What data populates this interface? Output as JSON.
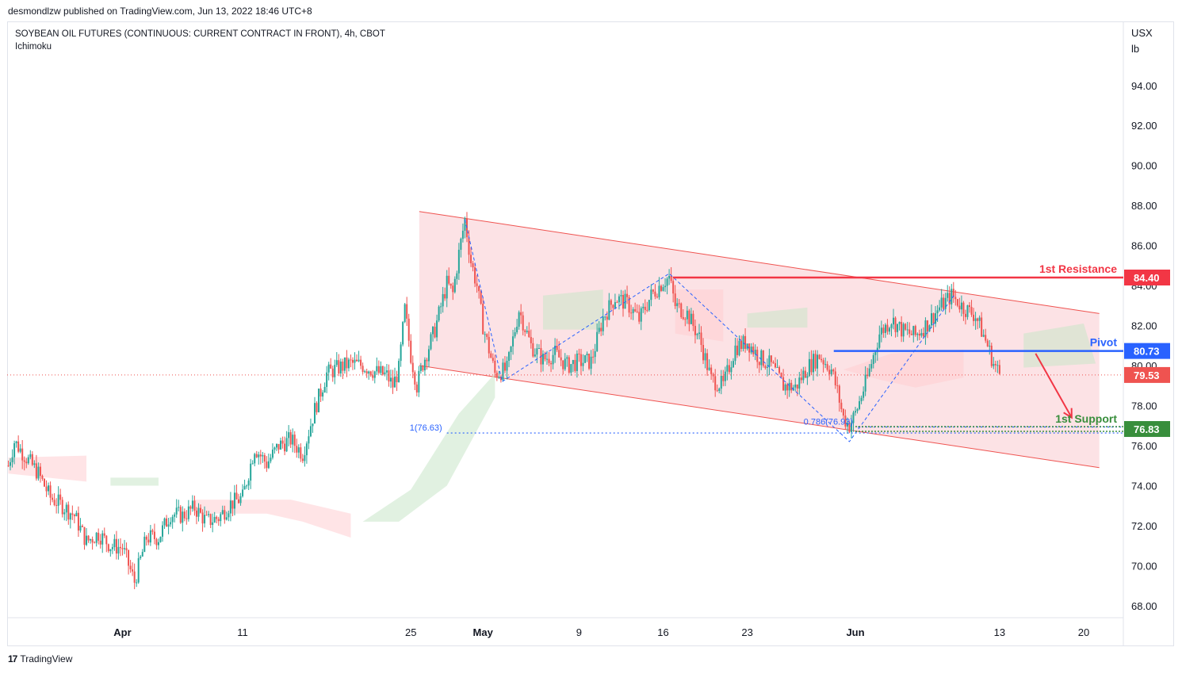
{
  "header": {
    "credit": "desmondlzw published on TradingView.com, Jun 13, 2022 18:46 UTC+8",
    "title": "SOYBEAN OIL FUTURES (CONTINUOUS: CURRENT CONTRACT IN FRONT), 4h, CBOT",
    "indicator": "Ichimoku"
  },
  "footer": {
    "brand_mark": "17",
    "brand": "TradingView"
  },
  "colors": {
    "bull": "#26a69a",
    "bear": "#ef5350",
    "channel_fill": "#f8b9c0",
    "resistance": "#f23645",
    "pivot": "#2962ff",
    "support": "#388e3c",
    "cloud_bull": "#c8e6c9",
    "cloud_bear": "#ffcdd2",
    "fib": "#2962ff"
  },
  "chart_data": {
    "type": "candlestick",
    "timeframe": "4h",
    "unit_lines": [
      "USX",
      "lb"
    ],
    "y_ticks": [
      "94.00",
      "92.00",
      "90.00",
      "88.00",
      "86.00",
      "84.00",
      "82.00",
      "80.00",
      "78.00",
      "76.00",
      "74.00",
      "72.00",
      "70.00",
      "68.00"
    ],
    "ylim": [
      67.4,
      97.2
    ],
    "x_ticks": [
      {
        "label": "Apr",
        "d": 6,
        "bold": true
      },
      {
        "label": "11",
        "d": 16,
        "bold": false
      },
      {
        "label": "25",
        "d": 30,
        "bold": false
      },
      {
        "label": "May",
        "d": 36,
        "bold": true
      },
      {
        "label": "9",
        "d": 44,
        "bold": false
      },
      {
        "label": "16",
        "d": 51,
        "bold": false
      },
      {
        "label": "23",
        "d": 58,
        "bold": false
      },
      {
        "label": "Jun",
        "d": 67,
        "bold": true
      },
      {
        "label": "13",
        "d": 79,
        "bold": false
      },
      {
        "label": "20",
        "d": 86,
        "bold": false
      }
    ],
    "xlim": [
      -3.6,
      89.3
    ],
    "price_path": [
      [
        -3.5,
        75.0
      ],
      [
        -3,
        76.2
      ],
      [
        -2,
        75.4
      ],
      [
        -1,
        74.6
      ],
      [
        0,
        73.4
      ],
      [
        1,
        73.0
      ],
      [
        2,
        72.5
      ],
      [
        3,
        71.2
      ],
      [
        4,
        71.6
      ],
      [
        5,
        71.0
      ],
      [
        6,
        70.9
      ],
      [
        7,
        69.2
      ],
      [
        8,
        71.4
      ],
      [
        9,
        71.4
      ],
      [
        10,
        72.6
      ],
      [
        11,
        72.5
      ],
      [
        12,
        72.9
      ],
      [
        13,
        72.2
      ],
      [
        14,
        72.4
      ],
      [
        15,
        73.1
      ],
      [
        16,
        73.4
      ],
      [
        17,
        75.9
      ],
      [
        18,
        75.1
      ],
      [
        19,
        76.0
      ],
      [
        20,
        76.3
      ],
      [
        21,
        75.6
      ],
      [
        22,
        77.8
      ],
      [
        23,
        79.6
      ],
      [
        24,
        79.9
      ],
      [
        25,
        80.1
      ],
      [
        26,
        80.0
      ],
      [
        27,
        79.7
      ],
      [
        28,
        79.5
      ],
      [
        28.5,
        79.0
      ],
      [
        29,
        79.8
      ],
      [
        29.5,
        82.8
      ],
      [
        30,
        80.5
      ],
      [
        30.5,
        79.0
      ],
      [
        31,
        80.1
      ],
      [
        32,
        81.8
      ],
      [
        33,
        84.1
      ],
      [
        33.5,
        83.6
      ],
      [
        34,
        85.6
      ],
      [
        34.5,
        87.3
      ],
      [
        35,
        85.2
      ],
      [
        35.5,
        84.0
      ],
      [
        36,
        82.0
      ],
      [
        37,
        79.6
      ],
      [
        38,
        79.8
      ],
      [
        39,
        82.8
      ],
      [
        40,
        81.0
      ],
      [
        41,
        80.3
      ],
      [
        42,
        80.6
      ],
      [
        43,
        80.0
      ],
      [
        44,
        80.2
      ],
      [
        45,
        80.2
      ],
      [
        46,
        82.4
      ],
      [
        47,
        83.4
      ],
      [
        48,
        83.1
      ],
      [
        49,
        82.3
      ],
      [
        50,
        83.5
      ],
      [
        51,
        84.2
      ],
      [
        51.5,
        84.4
      ],
      [
        52,
        83.0
      ],
      [
        53,
        82.6
      ],
      [
        54,
        81.4
      ],
      [
        55,
        79.3
      ],
      [
        56,
        79.0
      ],
      [
        57,
        80.9
      ],
      [
        58,
        81.2
      ],
      [
        59,
        80.4
      ],
      [
        60,
        80.0
      ],
      [
        61,
        79.0
      ],
      [
        62,
        78.9
      ],
      [
        63,
        79.9
      ],
      [
        64,
        80.5
      ],
      [
        65,
        79.8
      ],
      [
        65.5,
        78.7
      ],
      [
        66,
        77.4
      ],
      [
        66.5,
        77.0
      ],
      [
        67,
        77.6
      ],
      [
        68,
        79.4
      ],
      [
        69,
        81.6
      ],
      [
        70,
        82.3
      ],
      [
        71,
        81.7
      ],
      [
        72,
        81.5
      ],
      [
        73,
        82.1
      ],
      [
        74,
        82.9
      ],
      [
        75,
        83.5
      ],
      [
        76,
        82.9
      ],
      [
        77,
        82.5
      ],
      [
        78,
        81.0
      ],
      [
        78.5,
        80.1
      ],
      [
        79,
        79.6
      ]
    ],
    "channel": {
      "upper": {
        "from": [
          30.7,
          87.7
        ],
        "to": [
          87.3,
          82.6
        ]
      },
      "lower": {
        "from": [
          30.7,
          80.0
        ],
        "to": [
          87.3,
          74.9
        ]
      }
    },
    "cloud_bear": [
      [
        [
          -3.5,
          75.4
        ],
        [
          3,
          75.5
        ],
        [
          3,
          74.2
        ],
        [
          -3.5,
          74.6
        ]
      ],
      [
        [
          12,
          72.6
        ],
        [
          18,
          72.6
        ],
        [
          21,
          72.2
        ],
        [
          25,
          71.4
        ],
        [
          25,
          72.6
        ],
        [
          20,
          73.3
        ],
        [
          12,
          73.3
        ]
      ],
      [
        [
          52,
          83.8
        ],
        [
          56,
          83.8
        ],
        [
          56,
          81.2
        ],
        [
          52,
          81.6
        ]
      ],
      [
        [
          66,
          79.8
        ],
        [
          70,
          80.6
        ],
        [
          76,
          80.8
        ],
        [
          76,
          79.4
        ],
        [
          72,
          78.9
        ],
        [
          69,
          79.3
        ]
      ]
    ],
    "cloud_bull": [
      [
        [
          5,
          74.4
        ],
        [
          9,
          74.4
        ],
        [
          9,
          74.0
        ],
        [
          5,
          74.0
        ]
      ],
      [
        [
          26,
          72.2
        ],
        [
          30,
          73.8
        ],
        [
          34,
          77.6
        ],
        [
          37,
          79.6
        ],
        [
          37,
          78.4
        ],
        [
          33,
          74.0
        ],
        [
          29,
          72.2
        ]
      ],
      [
        [
          41,
          83.5
        ],
        [
          46,
          83.8
        ],
        [
          46,
          81.8
        ],
        [
          41,
          81.8
        ]
      ],
      [
        [
          58,
          82.6
        ],
        [
          63,
          82.9
        ],
        [
          63,
          81.9
        ],
        [
          58,
          81.9
        ]
      ],
      [
        [
          81,
          81.6
        ],
        [
          86,
          82.1
        ],
        [
          87,
          80.1
        ],
        [
          81,
          79.9
        ]
      ]
    ],
    "levels": [
      {
        "name": "1st Resistance",
        "value": 84.4,
        "label": "84.40",
        "color": "#f23645",
        "from_d": 51.8,
        "dashed": false
      },
      {
        "name": "Pivot",
        "value": 80.73,
        "label": "80.73",
        "color": "#2962ff",
        "from_d": 65.2,
        "dashed": false
      },
      {
        "name": "1st Support",
        "value": 76.83,
        "label": "76.83",
        "color": "#388e3c",
        "from_d": 67.0,
        "dashed": true
      }
    ],
    "last_price": {
      "value": 79.53,
      "label": "79.53"
    },
    "fibs": [
      {
        "label": "1(76.63)",
        "value": 76.63,
        "from_d": 33.0
      },
      {
        "label": "0.786(76.93)",
        "value": 76.93,
        "from_d": 67.2
      }
    ],
    "zigzag": [
      [
        34.5,
        87.3
      ],
      [
        37.6,
        79.2
      ],
      [
        51.5,
        84.6
      ],
      [
        66.5,
        76.2
      ],
      [
        75.2,
        83.5
      ]
    ],
    "arrow": {
      "from": [
        82.0,
        80.6
      ],
      "to": [
        85.0,
        77.4
      ]
    }
  }
}
